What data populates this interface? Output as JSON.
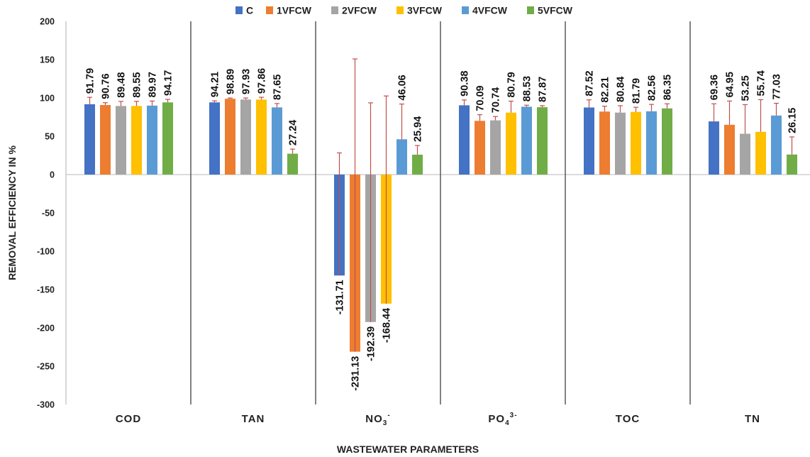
{
  "chart_data": {
    "type": "bar",
    "title": "",
    "xlabel": "WASTEWATER PARAMETERS",
    "ylabel": "REMOVAL EFFICIENCY IN %",
    "ylim": [
      -300,
      200
    ],
    "yticks": [
      200,
      150,
      100,
      50,
      0,
      -50,
      -100,
      -150,
      -200,
      -250,
      -300
    ],
    "legend_position": "top",
    "grid": false,
    "categories": [
      "COD",
      "TAN",
      "NO3-",
      "PO43-",
      "TOC",
      "TN"
    ],
    "category_labels": [
      {
        "base": "COD",
        "sub": "",
        "sup": ""
      },
      {
        "base": "TAN",
        "sub": "",
        "sup": ""
      },
      {
        "base": "NO",
        "sub": "3",
        "sup": "-"
      },
      {
        "base": "PO",
        "sub": "4",
        "sup": "3-"
      },
      {
        "base": "TOC",
        "sub": "",
        "sup": ""
      },
      {
        "base": "TN",
        "sub": "",
        "sup": ""
      }
    ],
    "series": [
      {
        "name": "C",
        "color": "#4472C4",
        "values": [
          91.79,
          94.21,
          -131.71,
          90.38,
          87.52,
          69.36
        ],
        "labels": [
          "91.79",
          "94.21",
          "-131.71",
          "90.38",
          "87.52",
          "69.36"
        ],
        "error": [
          9,
          2,
          160,
          7,
          10,
          23
        ]
      },
      {
        "name": "1VFCW",
        "color": "#ED7D31",
        "values": [
          90.76,
          98.89,
          -231.13,
          70.09,
          82.21,
          64.95
        ],
        "labels": [
          "90.76",
          "98.89",
          "-231.13",
          "70.09",
          "82.21",
          "64.95"
        ],
        "error": [
          3,
          1,
          382,
          8,
          7,
          31
        ]
      },
      {
        "name": "2VFCW",
        "color": "#A5A5A5",
        "values": [
          89.48,
          97.93,
          -192.39,
          70.74,
          80.84,
          53.25
        ],
        "labels": [
          "89.48",
          "97.93",
          "-192.39",
          "70.74",
          "80.84",
          "53.25"
        ],
        "error": [
          6,
          2,
          286,
          5,
          9,
          38
        ]
      },
      {
        "name": "3VFCW",
        "color": "#FFC000",
        "values": [
          89.55,
          97.86,
          -168.44,
          80.79,
          81.79,
          55.74
        ],
        "labels": [
          "89.55",
          "97.86",
          "-168.44",
          "80.79",
          "81.79",
          "55.74"
        ],
        "error": [
          6,
          3,
          271,
          15,
          6,
          42
        ]
      },
      {
        "name": "4VFCW",
        "color": "#5B9BD5",
        "values": [
          89.97,
          87.65,
          46.06,
          88.53,
          82.56,
          77.03
        ],
        "labels": [
          "89.97",
          "87.65",
          "46.06",
          "88.53",
          "82.56",
          "77.03"
        ],
        "error": [
          6,
          5,
          46,
          2,
          9,
          16
        ]
      },
      {
        "name": "5VFCW",
        "color": "#70AD47",
        "values": [
          94.17,
          27.24,
          25.94,
          87.87,
          86.35,
          26.15
        ],
        "labels": [
          "94.17",
          "27.24",
          "25.94",
          "87.87",
          "86.35",
          "26.15"
        ],
        "error": [
          4,
          6,
          12,
          2,
          6,
          23
        ]
      }
    ],
    "error_bar_color": "#C0504D",
    "divider_color": "#404040"
  }
}
